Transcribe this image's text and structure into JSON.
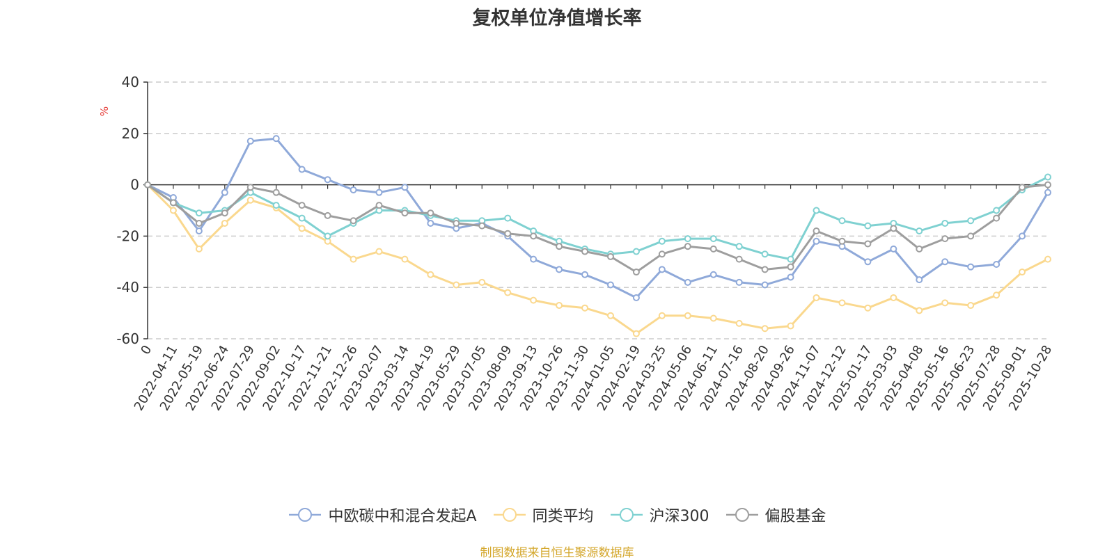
{
  "chart_data": {
    "type": "line",
    "title": "复权单位净值增长率",
    "ylabel": "%",
    "ylim": [
      -60,
      40
    ],
    "yticks": [
      -60,
      -40,
      -20,
      0,
      20,
      40
    ],
    "grid": true,
    "legend_position": "bottom",
    "source": "制图数据来自恒生聚源数据库",
    "categories": [
      "0",
      "2022-04-11",
      "2022-05-19",
      "2022-06-24",
      "2022-07-29",
      "2022-09-02",
      "2022-10-17",
      "2022-11-21",
      "2022-12-26",
      "2023-02-07",
      "2023-03-14",
      "2023-04-19",
      "2023-05-29",
      "2023-07-05",
      "2023-08-09",
      "2023-09-13",
      "2023-10-26",
      "2023-11-30",
      "2024-01-05",
      "2024-02-19",
      "2024-03-25",
      "2024-05-06",
      "2024-06-11",
      "2024-07-16",
      "2024-08-20",
      "2024-09-26",
      "2024-11-07",
      "2024-12-12",
      "2025-01-17",
      "2025-03-03",
      "2025-04-08",
      "2025-05-16",
      "2025-06-23",
      "2025-07-28",
      "2025-09-01",
      "2025-10-28"
    ],
    "series": [
      {
        "name": "中欧碳中和混合发起A",
        "color": "#8fa9d9",
        "values": [
          0,
          -5,
          -18,
          -3,
          17,
          18,
          6,
          2,
          -2,
          -3,
          -1,
          -15,
          -17,
          -15,
          -20,
          -29,
          -33,
          -35,
          -39,
          -44,
          -33,
          -38,
          -35,
          -38,
          -39,
          -36,
          -22,
          -24,
          -30,
          -25,
          -37,
          -30,
          -32,
          -31,
          -20,
          -3
        ]
      },
      {
        "name": "同类平均",
        "color": "#fad88e",
        "values": [
          0,
          -10,
          -25,
          -15,
          -6,
          -9,
          -17,
          -22,
          -29,
          -26,
          -29,
          -35,
          -39,
          -38,
          -42,
          -45,
          -47,
          -48,
          -51,
          -58,
          -51,
          -51,
          -52,
          -54,
          -56,
          -55,
          -44,
          -46,
          -48,
          -44,
          -49,
          -46,
          -47,
          -43,
          -34,
          -29
        ]
      },
      {
        "name": "沪深300",
        "color": "#7fd1d1",
        "values": [
          0,
          -7,
          -11,
          -10,
          -3,
          -8,
          -13,
          -20,
          -15,
          -10,
          -10,
          -12,
          -14,
          -14,
          -13,
          -18,
          -22,
          -25,
          -27,
          -26,
          -22,
          -21,
          -21,
          -24,
          -27,
          -29,
          -10,
          -14,
          -16,
          -15,
          -18,
          -15,
          -14,
          -10,
          -2,
          3
        ]
      },
      {
        "name": "偏股基金",
        "color": "#9e9e9e",
        "values": [
          0,
          -7,
          -15,
          -11,
          -1,
          -3,
          -8,
          -12,
          -14,
          -8,
          -11,
          -11,
          -15,
          -16,
          -19,
          -20,
          -24,
          -26,
          -28,
          -34,
          -27,
          -24,
          -25,
          -29,
          -33,
          -32,
          -18,
          -22,
          -23,
          -17,
          -25,
          -21,
          -20,
          -13,
          -1,
          0
        ]
      }
    ]
  }
}
